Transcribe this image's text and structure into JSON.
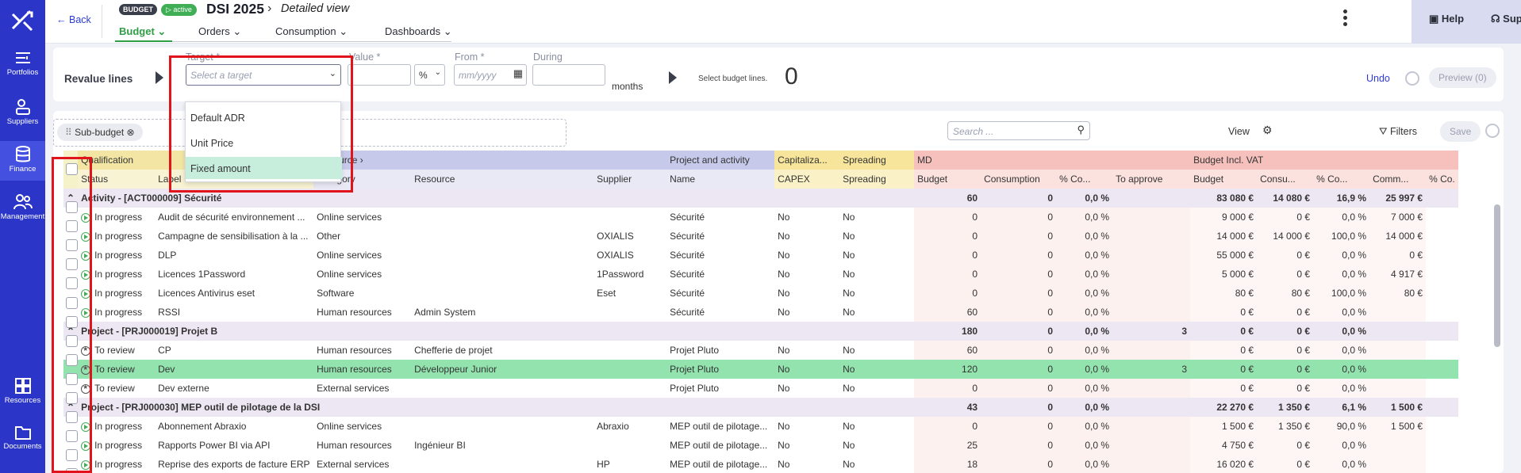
{
  "nav": {
    "items": [
      {
        "label": "Portfolios"
      },
      {
        "label": "Suppliers"
      },
      {
        "label": "Finance"
      },
      {
        "label": "Management"
      },
      {
        "label": "Resources"
      },
      {
        "label": "Documents"
      }
    ]
  },
  "header": {
    "back_label": "Back",
    "badge_type": "BUDGET",
    "badge_status": "active",
    "title": "DSI 2025",
    "crumb": "Detailed view",
    "help_label": "Help",
    "support_label": "Support",
    "tabs": [
      {
        "label": "Budget"
      },
      {
        "label": "Orders"
      },
      {
        "label": "Consumption"
      },
      {
        "label": "Dashboards"
      }
    ]
  },
  "revalue": {
    "title": "Revalue lines",
    "target_label": "Target *",
    "target_placeholder": "Select a target",
    "value_label": "Value *",
    "unit": "%",
    "from_label": "From *",
    "from_placeholder": "mm/yyyy",
    "during_label": "During",
    "months": "months",
    "select_hint": "Select budget lines.",
    "count": "0",
    "undo": "Undo",
    "preview": "Preview (0)"
  },
  "dropdown": {
    "options": [
      "Default ADR",
      "Unit Price",
      "Fixed amount"
    ],
    "selected": "Fixed amount"
  },
  "toolbar": {
    "chip": "Sub-budget",
    "search_placeholder": "Search ...",
    "view": "View",
    "filters": "Filters",
    "save": "Save"
  },
  "table": {
    "group_headers": [
      "Qualification",
      "Resource",
      "Project and activity",
      "Capitaliza...",
      "Spreading",
      "MD",
      "Budget Incl. VAT"
    ],
    "columns": [
      "Status",
      "Label",
      "Category",
      "Resource",
      "Supplier",
      "Name",
      "CAPEX",
      "Spreading",
      "Budget",
      "Consumption",
      "% Co...",
      "To approve",
      "Budget",
      "Consu...",
      "% Co...",
      "Comm...",
      "% Co."
    ],
    "rows": [
      {
        "group": true,
        "text": "Activity - [ACT000009] Sécurité",
        "md_budget": "60",
        "md_cons": "0",
        "md_pct": "0,0 %",
        "md_appr": "",
        "b": "83 080 €",
        "c": "14 080 €",
        "p": "16,9 %",
        "m": "25 997 €"
      },
      {
        "status": "In progress",
        "st": "prog",
        "label": "Audit de sécurité environnement ...",
        "cat": "Online services",
        "res": "",
        "sup": "",
        "name": "Sécurité",
        "capex": "No",
        "spread": "No",
        "md_budget": "0",
        "md_cons": "0",
        "md_pct": "0,0 %",
        "md_appr": "",
        "b": "9 000 €",
        "c": "0 €",
        "p": "0,0 %",
        "m": "7 000 €"
      },
      {
        "status": "In progress",
        "st": "prog",
        "label": "Campagne de sensibilisation à la ...",
        "cat": "Other",
        "res": "",
        "sup": "OXIALIS",
        "name": "Sécurité",
        "capex": "No",
        "spread": "No",
        "md_budget": "0",
        "md_cons": "0",
        "md_pct": "0,0 %",
        "md_appr": "",
        "b": "14 000 €",
        "c": "14 000 €",
        "p": "100,0 %",
        "m": "14 000 €"
      },
      {
        "status": "In progress",
        "st": "prog",
        "label": "DLP",
        "cat": "Online services",
        "res": "",
        "sup": "OXIALIS",
        "name": "Sécurité",
        "capex": "No",
        "spread": "No",
        "md_budget": "0",
        "md_cons": "0",
        "md_pct": "0,0 %",
        "md_appr": "",
        "b": "55 000 €",
        "c": "0 €",
        "p": "0,0 %",
        "m": "0 €"
      },
      {
        "status": "In progress",
        "st": "prog",
        "label": "Licences 1Password",
        "cat": "Online services",
        "res": "",
        "sup": "1Password",
        "name": "Sécurité",
        "capex": "No",
        "spread": "No",
        "md_budget": "0",
        "md_cons": "0",
        "md_pct": "0,0 %",
        "md_appr": "",
        "b": "5 000 €",
        "c": "0 €",
        "p": "0,0 %",
        "m": "4 917 €"
      },
      {
        "status": "In progress",
        "st": "prog",
        "label": "Licences Antivirus eset",
        "cat": "Software",
        "res": "",
        "sup": "Eset",
        "name": "Sécurité",
        "capex": "No",
        "spread": "No",
        "md_budget": "0",
        "md_cons": "0",
        "md_pct": "0,0 %",
        "md_appr": "",
        "b": "80 €",
        "c": "80 €",
        "p": "100,0 %",
        "m": "80 €"
      },
      {
        "status": "In progress",
        "st": "prog",
        "label": "RSSI",
        "cat": "Human resources",
        "res": "Admin System",
        "sup": "",
        "name": "Sécurité",
        "capex": "No",
        "spread": "No",
        "md_budget": "60",
        "md_cons": "0",
        "md_pct": "0,0 %",
        "md_appr": "",
        "b": "0 €",
        "c": "0 €",
        "p": "0,0 %",
        "m": ""
      },
      {
        "group": true,
        "text": "Project - [PRJ000019] Projet B",
        "md_budget": "180",
        "md_cons": "0",
        "md_pct": "0,0 %",
        "md_appr": "3",
        "b": "0 €",
        "c": "0 €",
        "p": "0,0 %",
        "m": ""
      },
      {
        "status": "To review",
        "st": "rev",
        "label": "CP",
        "cat": "Human resources",
        "res": "Chefferie de projet",
        "sup": "",
        "name": "Projet Pluto",
        "capex": "No",
        "spread": "No",
        "md_budget": "60",
        "md_cons": "0",
        "md_pct": "0,0 %",
        "md_appr": "",
        "b": "0 €",
        "c": "0 €",
        "p": "0,0 %",
        "m": ""
      },
      {
        "status": "To review",
        "st": "rev",
        "hl": true,
        "label": "Dev",
        "cat": "Human resources",
        "res": "Développeur Junior",
        "sup": "",
        "name": "Projet Pluto",
        "capex": "No",
        "spread": "No",
        "md_budget": "120",
        "md_cons": "0",
        "md_pct": "0,0 %",
        "md_appr": "3",
        "b": "0 €",
        "c": "0 €",
        "p": "0,0 %",
        "m": ""
      },
      {
        "status": "To review",
        "st": "rev",
        "label": "Dev externe",
        "cat": "External services",
        "res": "",
        "sup": "",
        "name": "Projet Pluto",
        "capex": "No",
        "spread": "No",
        "md_budget": "0",
        "md_cons": "0",
        "md_pct": "0,0 %",
        "md_appr": "",
        "b": "0 €",
        "c": "0 €",
        "p": "0,0 %",
        "m": ""
      },
      {
        "group": true,
        "text": "Project - [PRJ000030] MEP outil de pilotage de la DSI",
        "md_budget": "43",
        "md_cons": "0",
        "md_pct": "0,0 %",
        "md_appr": "",
        "b": "22 270 €",
        "c": "1 350 €",
        "p": "6,1 %",
        "m": "1 500 €"
      },
      {
        "status": "In progress",
        "st": "prog",
        "label": "Abonnement Abraxio",
        "cat": "Online services",
        "res": "",
        "sup": "Abraxio",
        "name": "MEP outil de pilotage...",
        "capex": "No",
        "spread": "No",
        "md_budget": "0",
        "md_cons": "0",
        "md_pct": "0,0 %",
        "md_appr": "",
        "b": "1 500 €",
        "c": "1 350 €",
        "p": "90,0 %",
        "m": "1 500 €"
      },
      {
        "status": "In progress",
        "st": "prog",
        "label": "Rapports Power BI via API",
        "cat": "Human resources",
        "res": "Ingénieur BI",
        "sup": "",
        "name": "MEP outil de pilotage...",
        "capex": "No",
        "spread": "No",
        "md_budget": "25",
        "md_cons": "0",
        "md_pct": "0,0 %",
        "md_appr": "",
        "b": "4 750 €",
        "c": "0 €",
        "p": "0,0 %",
        "m": ""
      },
      {
        "status": "In progress",
        "st": "prog",
        "label": "Reprise des exports de facture ERP",
        "cat": "External services",
        "res": "",
        "sup": "HP",
        "name": "MEP outil de pilotage...",
        "capex": "No",
        "spread": "No",
        "md_budget": "18",
        "md_cons": "0",
        "md_pct": "0,0 %",
        "md_appr": "",
        "b": "16 020 €",
        "c": "0 €",
        "p": "0,0 %",
        "m": ""
      }
    ]
  }
}
